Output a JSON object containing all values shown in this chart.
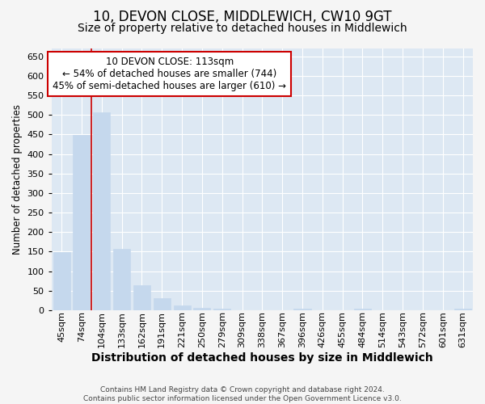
{
  "title": "10, DEVON CLOSE, MIDDLEWICH, CW10 9GT",
  "subtitle": "Size of property relative to detached houses in Middlewich",
  "xlabel": "Distribution of detached houses by size in Middlewich",
  "ylabel": "Number of detached properties",
  "footnote1": "Contains HM Land Registry data © Crown copyright and database right 2024.",
  "footnote2": "Contains public sector information licensed under the Open Government Licence v3.0.",
  "categories": [
    "45sqm",
    "74sqm",
    "104sqm",
    "133sqm",
    "162sqm",
    "191sqm",
    "221sqm",
    "250sqm",
    "279sqm",
    "309sqm",
    "338sqm",
    "367sqm",
    "396sqm",
    "426sqm",
    "455sqm",
    "484sqm",
    "514sqm",
    "543sqm",
    "572sqm",
    "601sqm",
    "631sqm"
  ],
  "values": [
    148,
    449,
    507,
    158,
    65,
    30,
    12,
    7,
    5,
    0,
    0,
    0,
    5,
    0,
    0,
    5,
    0,
    0,
    0,
    0,
    5
  ],
  "bar_color": "#c5d8ed",
  "bar_edge_color": "#c5d8ed",
  "vline_x": 1.5,
  "vline_color": "#cc0000",
  "annotation_line1": "10 DEVON CLOSE: 113sqm",
  "annotation_line2": "← 54% of detached houses are smaller (744)",
  "annotation_line3": "45% of semi-detached houses are larger (610) →",
  "annotation_box_facecolor": "#ffffff",
  "annotation_box_edgecolor": "#cc0000",
  "ylim": [
    0,
    670
  ],
  "yticks": [
    0,
    50,
    100,
    150,
    200,
    250,
    300,
    350,
    400,
    450,
    500,
    550,
    600,
    650
  ],
  "fig_bg_color": "#f5f5f5",
  "plot_bg_color": "#dde8f3",
  "grid_color": "#ffffff",
  "title_fontsize": 12,
  "subtitle_fontsize": 10,
  "xlabel_fontsize": 10,
  "ylabel_fontsize": 8.5,
  "tick_fontsize": 8,
  "annotation_fontsize": 8.5,
  "footer_fontsize": 6.5
}
